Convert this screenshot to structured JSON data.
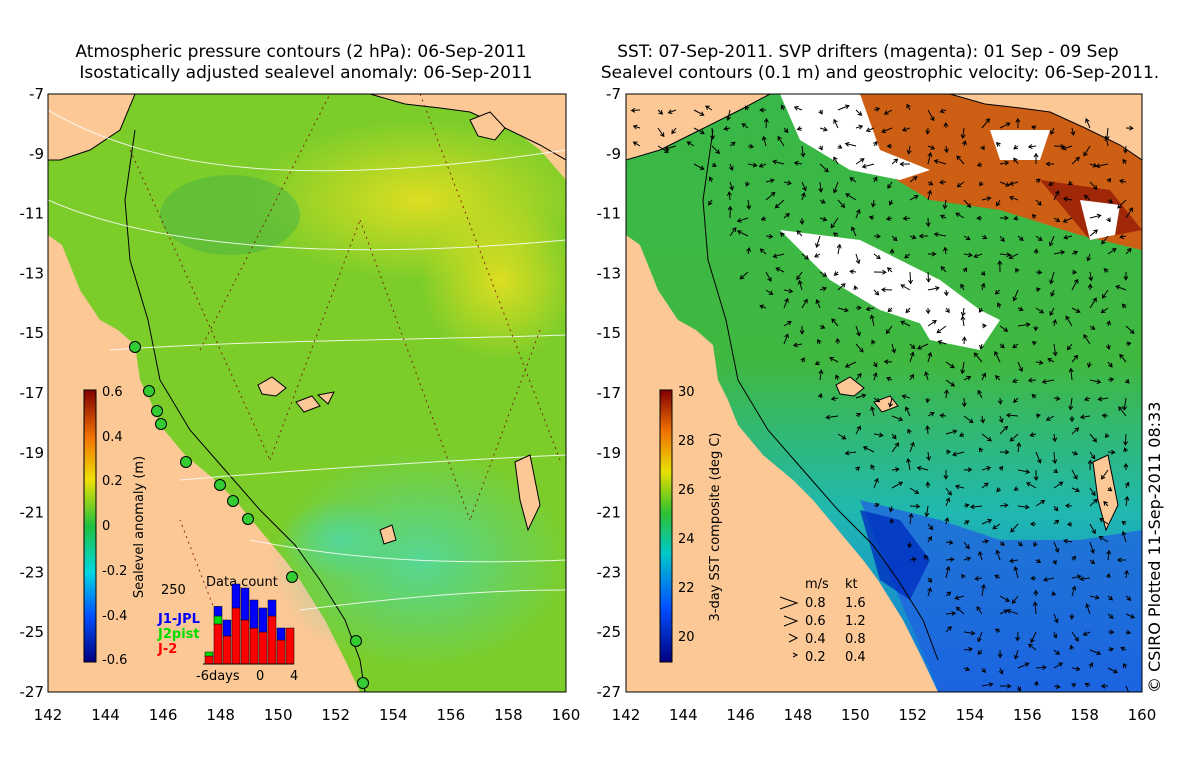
{
  "left_panel": {
    "title_line1": "Atmospheric pressure contours (2 hPa): 06-Sep-2011",
    "title_line2": "Isostatically adjusted sealevel anomaly: 06-Sep-2011",
    "colorbar": {
      "label": "Sealevel anomaly (m)",
      "ticks": [
        "0.6",
        "0.4",
        "0.2",
        "0",
        "-0.2",
        "-0.4",
        "-0.6"
      ]
    },
    "data_count": {
      "title": "Data count",
      "max_label": "250",
      "legend": [
        "J1-JPL",
        "J2pist",
        "J-2"
      ],
      "legend_colors": [
        "#0000ff",
        "#00dd00",
        "#ff0000"
      ],
      "x_ticks": [
        "-6days",
        "0",
        "4"
      ]
    }
  },
  "right_panel": {
    "title_line1": "SST: 07-Sep-2011. SVP drifters (magenta): 01 Sep - 09 Sep",
    "title_line2": "Sealevel contours (0.1 m) and geostrophic velocity: 06-Sep-2011.",
    "colorbar": {
      "label": "3-day SST composite (deg C)",
      "ticks": [
        "30",
        "28",
        "26",
        "24",
        "22",
        "20"
      ]
    },
    "velocity_legend": {
      "header_ms": "m/s",
      "header_kt": "kt",
      "rows": [
        [
          "0.8",
          "1.6"
        ],
        [
          "0.6",
          "1.2"
        ],
        [
          "0.4",
          "0.8"
        ],
        [
          "0.2",
          "0.4"
        ]
      ]
    }
  },
  "lat_ticks": [
    "-7",
    "-9",
    "-11",
    "-13",
    "-15",
    "-17",
    "-19",
    "-21",
    "-23",
    "-25",
    "-27"
  ],
  "lon_ticks": [
    "142",
    "144",
    "146",
    "148",
    "150",
    "152",
    "154",
    "156",
    "158",
    "160"
  ],
  "credit": "© CSIRO Plotted 11-Sep-2011 08:33",
  "colors": {
    "land": "#fbc896",
    "sea_green": "#7ccd2a",
    "sst_orange": "#cc5f14"
  }
}
